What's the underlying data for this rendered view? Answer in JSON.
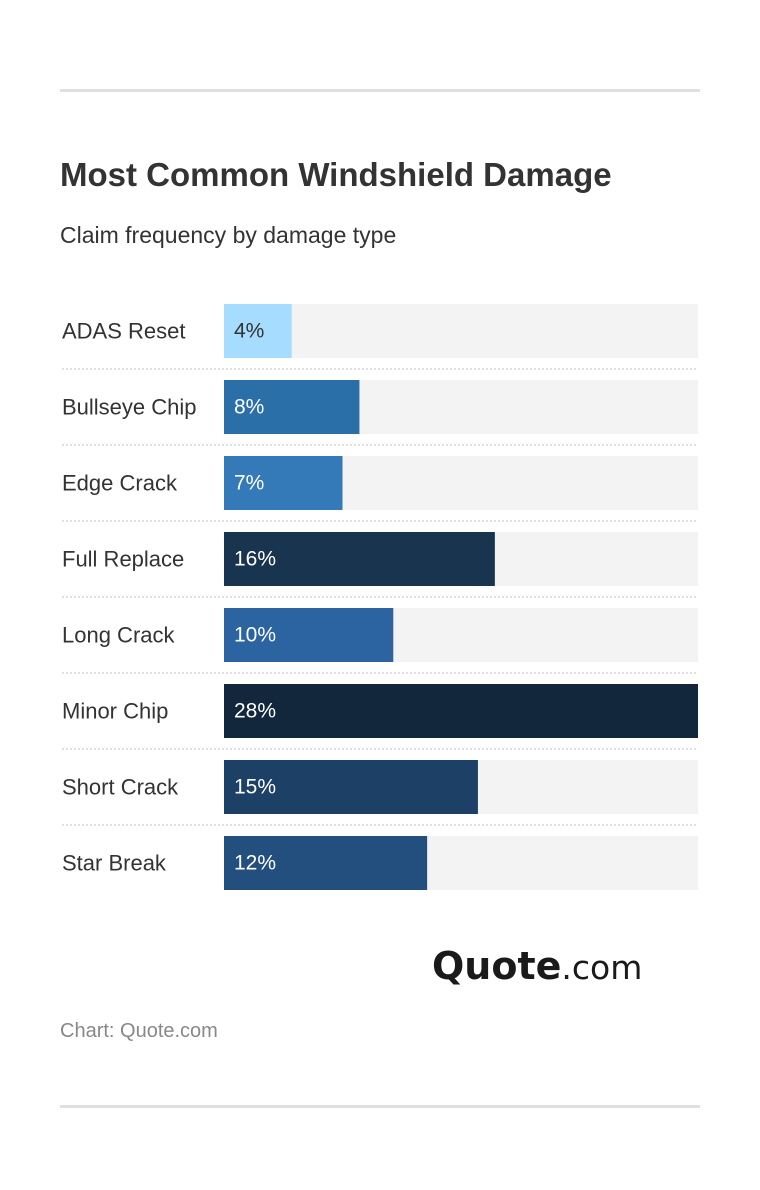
{
  "header": {
    "title": "Most Common Windshield Damage",
    "subtitle": "Claim frequency by damage type"
  },
  "chart_data": {
    "type": "bar",
    "orientation": "horizontal",
    "title": "Most Common Windshield Damage",
    "subtitle": "Claim frequency by damage type",
    "categories": [
      "ADAS Reset",
      "Bullseye Chip",
      "Edge Crack",
      "Full Replace",
      "Long Crack",
      "Minor Chip",
      "Short Crack",
      "Star Break"
    ],
    "values": [
      4,
      8,
      7,
      16,
      10,
      28,
      15,
      12
    ],
    "value_labels": [
      "4%",
      "8%",
      "7%",
      "16%",
      "10%",
      "28%",
      "15%",
      "12%"
    ],
    "bar_colors": [
      "#a6dcff",
      "#2b6fa8",
      "#3479b8",
      "#18344f",
      "#2b64a0",
      "#12263c",
      "#1d4166",
      "#224f7e"
    ],
    "label_colors": [
      "#333333",
      "#ffffff",
      "#ffffff",
      "#ffffff",
      "#ffffff",
      "#ffffff",
      "#ffffff",
      "#ffffff"
    ],
    "track_color": "#f3f3f3",
    "xlim": [
      0,
      28
    ],
    "grid": false,
    "legend": "none"
  },
  "branding": {
    "logo_brand": "Quote",
    "logo_tld": ".com"
  },
  "footer": {
    "source": "Chart: Quote.com"
  }
}
